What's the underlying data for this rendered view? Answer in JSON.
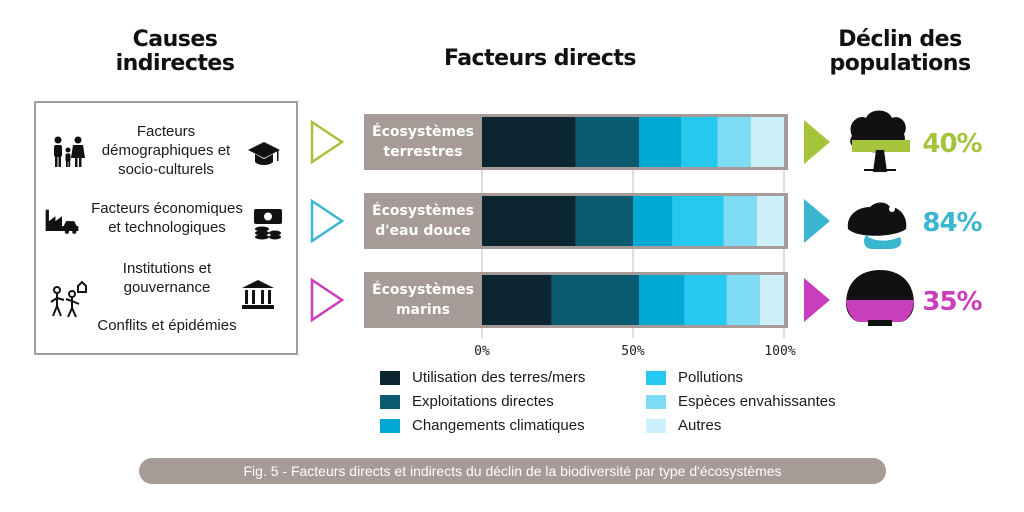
{
  "headings": {
    "causes": "Causes\nindirectes",
    "direct": "Facteurs directs",
    "decline": "Déclin des\npopulations"
  },
  "causes": [
    {
      "label": "Facteurs\ndémographiques et\nsocio-culturels",
      "icon_left": "family-icon",
      "icon_right": "graduation-cap-icon"
    },
    {
      "label": "Facteurs économiques\net technologiques",
      "icon_left": "factory-car-icon",
      "icon_right": "money-coins-icon"
    },
    {
      "label": "Institutions et\ngouvernance",
      "icon_left": "people-conflict-icon",
      "icon_right": "government-building-icon"
    },
    {
      "label": "Conflits et épidémies"
    }
  ],
  "chart_data": {
    "type": "bar",
    "orientation": "horizontal",
    "stacked": true,
    "categories": [
      "Écosystèmes terrestres",
      "Écosystèmes d'eau douce",
      "Écosystèmes marins"
    ],
    "series": [
      {
        "name": "Utilisation des terres/mers",
        "color": "#0b2631",
        "values": [
          31,
          31,
          23
        ]
      },
      {
        "name": "Exploitations directes",
        "color": "#0b5a6f",
        "values": [
          21,
          19,
          29
        ]
      },
      {
        "name": "Changements climatiques",
        "color": "#00a8d4",
        "values": [
          14,
          13,
          15
        ]
      },
      {
        "name": "Pollutions",
        "color": "#25c9ef",
        "values": [
          12,
          17,
          14
        ]
      },
      {
        "name": "Espèces envahissantes",
        "color": "#7edcf5",
        "values": [
          11,
          11,
          11
        ]
      },
      {
        "name": "Autres",
        "color": "#cdf0fb",
        "values": [
          11,
          9,
          8
        ]
      }
    ],
    "xlim": [
      0,
      100
    ],
    "xticks": [
      "0%",
      "50%",
      "100%"
    ],
    "legend_position": "bottom",
    "legend_columns": 2
  },
  "declines": [
    {
      "value": "40%",
      "color": "#a6c43b",
      "icon": "tree-icon"
    },
    {
      "value": "84%",
      "color": "#3ab6d0",
      "icon": "frog-icon"
    },
    {
      "value": "35%",
      "color": "#c83fbe",
      "icon": "shell-icon"
    }
  ],
  "caption": "Fig. 5 - Facteurs directs et indirects du déclin de la biodiversité par type d'écosystèmes"
}
